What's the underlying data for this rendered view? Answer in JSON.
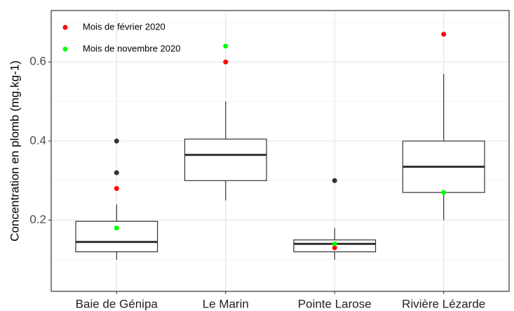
{
  "chart_data": {
    "type": "box",
    "y_label": "Concentration en plomb (mg.kg-1)",
    "categories": [
      "Baie de Génipa",
      "Le Marin",
      "Pointe Larose",
      "Rivière Lézarde"
    ],
    "boxes": [
      {
        "low": 0.1,
        "q1": 0.12,
        "median": 0.145,
        "q3": 0.197,
        "high": 0.24,
        "outliers": [
          0.4,
          0.32
        ]
      },
      {
        "low": 0.25,
        "q1": 0.3,
        "median": 0.365,
        "q3": 0.405,
        "high": 0.5,
        "outliers": []
      },
      {
        "low": 0.1,
        "q1": 0.12,
        "median": 0.14,
        "q3": 0.15,
        "high": 0.18,
        "outliers": [
          0.3
        ]
      },
      {
        "low": 0.2,
        "q1": 0.27,
        "median": 0.335,
        "q3": 0.4,
        "high": 0.57,
        "outliers": []
      }
    ],
    "series": [
      {
        "name": "Mois de février 2020",
        "color": "#ff0000",
        "values": [
          0.28,
          0.6,
          0.13,
          0.67
        ]
      },
      {
        "name": "Mois de novembre 2020",
        "color": "#00ff00",
        "values": [
          0.18,
          0.64,
          0.14,
          0.27
        ]
      }
    ],
    "ylim": [
      0.02,
      0.73
    ],
    "yticks": [
      0.2,
      0.4,
      0.6
    ],
    "minor_yticks": [
      0.1,
      0.3,
      0.5,
      0.7
    ],
    "grid": true,
    "legend_position": "top-left"
  }
}
